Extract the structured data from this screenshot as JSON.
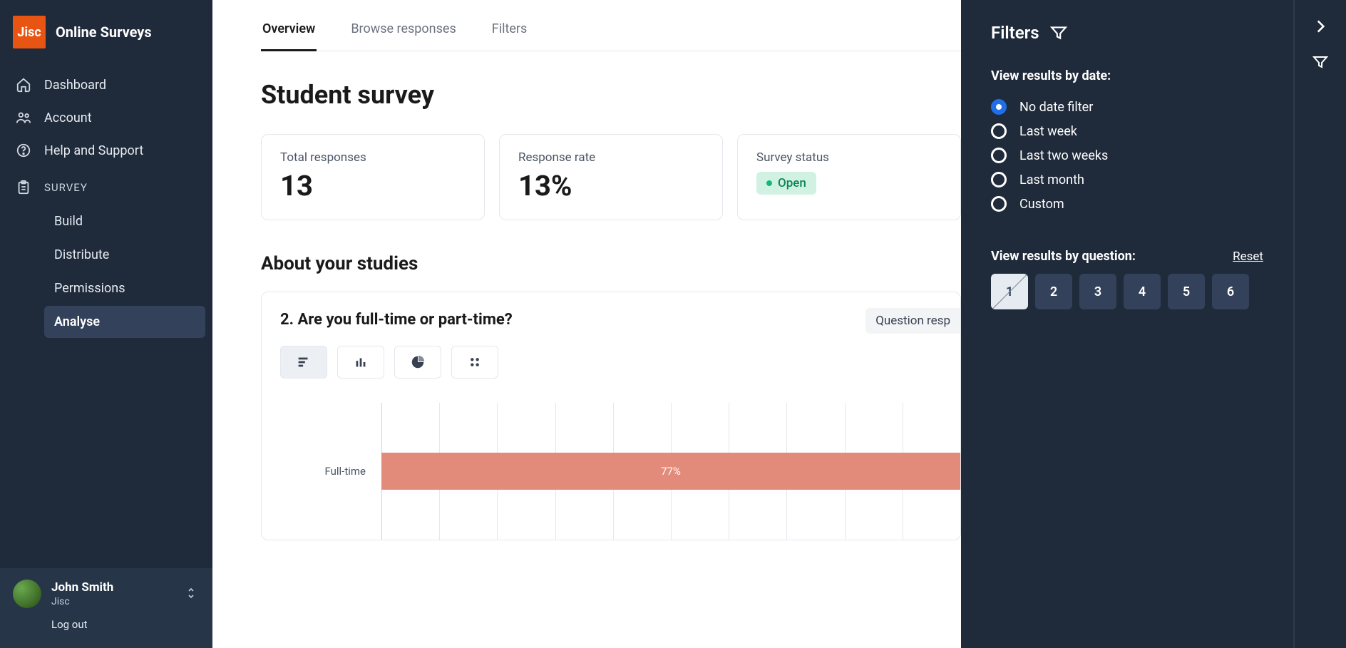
{
  "brand": {
    "logo_text": "Jisc",
    "title": "Online Surveys"
  },
  "nav": {
    "dashboard": "Dashboard",
    "account": "Account",
    "help": "Help and Support"
  },
  "survey_section": {
    "label": "SURVEY",
    "items": {
      "build": "Build",
      "distribute": "Distribute",
      "permissions": "Permissions",
      "analyse": "Analyse"
    },
    "active": "analyse"
  },
  "user": {
    "name": "John Smith",
    "org": "Jisc",
    "logout": "Log out"
  },
  "tabs": {
    "overview": "Overview",
    "browse": "Browse responses",
    "filters": "Filters",
    "active": "overview"
  },
  "survey_title": "Student survey",
  "cards": {
    "total_responses": {
      "label": "Total responses",
      "value": "13"
    },
    "response_rate": {
      "label": "Response rate",
      "value": "13%"
    },
    "survey_status": {
      "label": "Survey status",
      "status": "Open"
    }
  },
  "section_title": "About your studies",
  "question": {
    "text": "2. Are you full-time or part-time?",
    "meta_chip": "Question resp",
    "chart": {
      "type": "horizontal-bar",
      "grid_segments": 10,
      "bar_color": "#e38b7b",
      "grid_color": "#e4e7ec",
      "axis_color": "#cfd4dc",
      "rows": [
        {
          "label": "Full-time",
          "value_pct": 77,
          "width_pct": 100,
          "display": "77%"
        }
      ]
    }
  },
  "filters": {
    "title": "Filters",
    "by_date_label": "View results by date:",
    "date_options": [
      {
        "key": "no_date",
        "label": "No date filter",
        "selected": true
      },
      {
        "key": "last_week",
        "label": "Last week",
        "selected": false
      },
      {
        "key": "last_two_weeks",
        "label": "Last two weeks",
        "selected": false
      },
      {
        "key": "last_month",
        "label": "Last month",
        "selected": false
      },
      {
        "key": "custom",
        "label": "Custom",
        "selected": false
      }
    ],
    "by_question_label": "View results by question:",
    "reset": "Reset",
    "questions": [
      {
        "n": "1",
        "disabled": true
      },
      {
        "n": "2",
        "disabled": false
      },
      {
        "n": "3",
        "disabled": false
      },
      {
        "n": "4",
        "disabled": false
      },
      {
        "n": "5",
        "disabled": false
      },
      {
        "n": "6",
        "disabled": false
      }
    ]
  }
}
